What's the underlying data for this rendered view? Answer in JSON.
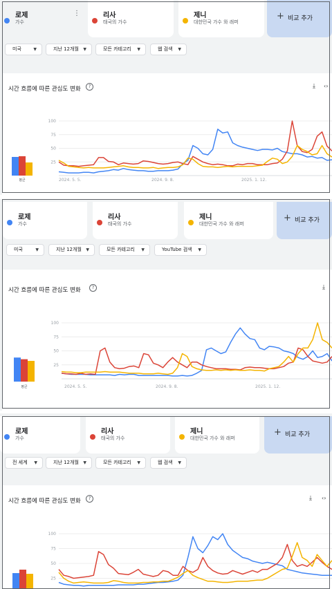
{
  "colors": {
    "rose": "#4285f4",
    "lisa": "#db4437",
    "jennie": "#f4b400",
    "compare": "#c9d9f2"
  },
  "panels": [
    {
      "terms": [
        {
          "name": "로제",
          "sub": "가수",
          "color": "#4285f4"
        },
        {
          "name": "리사",
          "sub": "태국의 가수",
          "color": "#db4437"
        },
        {
          "name": "제니",
          "sub": "대한민국 가수 와 래퍼",
          "color": "#f4b400"
        }
      ],
      "compare_label": "비교 추가",
      "filters": [
        "미국",
        "지난 12개월",
        "모든 카테고리",
        "웹 검색"
      ],
      "chart_title": "시간 흐름에 따른 관심도 변화",
      "avg_label": "평균"
    },
    {
      "terms": [
        {
          "name": "로제",
          "sub": "가수",
          "color": "#4285f4"
        },
        {
          "name": "리사",
          "sub": "태국의 가수",
          "color": "#db4437"
        },
        {
          "name": "제니",
          "sub": "대한민국 가수 와 래퍼",
          "color": "#f4b400"
        }
      ],
      "compare_label": "비교 추가",
      "filters": [
        "미국",
        "지난 12개월",
        "모든 카테고리",
        "YouTube 검색"
      ],
      "chart_title": "시간 흐름에 따른 관심도 변화",
      "avg_label": "평균"
    },
    {
      "terms": [
        {
          "name": "로제",
          "sub": "가수",
          "color": "#4285f4"
        },
        {
          "name": "리사",
          "sub": "태국의 가수",
          "color": "#db4437"
        },
        {
          "name": "제니",
          "sub": "대한민국 가수 와 래퍼",
          "color": "#f4b400"
        }
      ],
      "compare_label": "비교 추가",
      "filters": [
        "전 세계",
        "지난 12개월",
        "모든 카테고리",
        "웹 검색"
      ],
      "chart_title": "시간 흐름에 따른 관심도 변화",
      "avg_label": ""
    }
  ],
  "chart_data": [
    {
      "type": "line",
      "title": "시간 흐름에 따른 관심도 변화",
      "yticks": [
        25,
        50,
        75,
        100
      ],
      "ylim": [
        0,
        100
      ],
      "xticks": [
        "2024. 5. 5.",
        "2024. 9. 8.",
        "2025. 1. 12."
      ],
      "averages": [
        {
          "name": "로제",
          "value": 27
        },
        {
          "name": "리사",
          "value": 28
        },
        {
          "name": "제니",
          "value": 19
        }
      ],
      "series": [
        {
          "name": "로제",
          "color": "#4285f4",
          "values": [
            7,
            6,
            5,
            5,
            5,
            6,
            6,
            5,
            7,
            8,
            9,
            11,
            10,
            13,
            11,
            10,
            9,
            9,
            8,
            8,
            9,
            9,
            9,
            10,
            12,
            22,
            28,
            55,
            50,
            40,
            38,
            48,
            85,
            78,
            80,
            60,
            55,
            52,
            50,
            48,
            46,
            48,
            48,
            47,
            50,
            44,
            42,
            40,
            40,
            38,
            34,
            35,
            32,
            33,
            28,
            29
          ]
        },
        {
          "name": "리사",
          "color": "#db4437",
          "values": [
            25,
            19,
            18,
            18,
            17,
            18,
            19,
            20,
            33,
            33,
            26,
            25,
            20,
            23,
            22,
            21,
            22,
            27,
            26,
            24,
            22,
            21,
            22,
            24,
            25,
            22,
            20,
            35,
            30,
            25,
            22,
            20,
            21,
            20,
            18,
            18,
            21,
            20,
            22,
            22,
            20,
            20,
            20,
            22,
            23,
            30,
            45,
            100,
            55,
            44,
            42,
            48,
            72,
            80,
            54,
            45
          ]
        },
        {
          "name": "제니",
          "color": "#f4b400",
          "values": [
            28,
            23,
            17,
            16,
            15,
            14,
            15,
            14,
            14,
            14,
            15,
            16,
            17,
            18,
            16,
            15,
            15,
            14,
            14,
            15,
            13,
            14,
            15,
            15,
            16,
            20,
            32,
            30,
            22,
            17,
            16,
            16,
            15,
            16,
            17,
            16,
            17,
            17,
            17,
            17,
            18,
            19,
            26,
            32,
            30,
            22,
            25,
            35,
            55,
            48,
            44,
            38,
            40,
            55,
            40,
            34
          ]
        }
      ]
    },
    {
      "type": "line",
      "title": "시간 흐름에 따른 관심도 변화",
      "yticks": [
        25,
        50,
        75,
        100
      ],
      "ylim": [
        0,
        100
      ],
      "xticks": [
        "2024. 5. 5.",
        "2024. 9. 8.",
        "2025. 1. 12."
      ],
      "averages": [
        {
          "name": "로제",
          "value": 29
        },
        {
          "name": "리사",
          "value": 27
        },
        {
          "name": "제니",
          "value": 25
        }
      ],
      "series": [
        {
          "name": "로제",
          "color": "#4285f4",
          "values": [
            10,
            9,
            8,
            8,
            8,
            8,
            7,
            7,
            7,
            7,
            7,
            6,
            8,
            7,
            8,
            8,
            6,
            6,
            6,
            6,
            6,
            6,
            6,
            5,
            5,
            6,
            5,
            6,
            10,
            15,
            52,
            55,
            50,
            45,
            48,
            65,
            80,
            91,
            80,
            72,
            70,
            55,
            52,
            58,
            57,
            55,
            50,
            48,
            45,
            38,
            35,
            40,
            50,
            38,
            40,
            45,
            32
          ]
        },
        {
          "name": "리사",
          "color": "#db4437",
          "values": [
            10,
            9,
            9,
            8,
            10,
            8,
            9,
            8,
            50,
            55,
            30,
            20,
            18,
            19,
            22,
            23,
            20,
            45,
            43,
            28,
            25,
            20,
            30,
            38,
            30,
            25,
            20,
            30,
            30,
            25,
            22,
            20,
            18,
            18,
            18,
            17,
            17,
            16,
            20,
            21,
            20,
            20,
            19,
            18,
            18,
            20,
            22,
            28,
            30,
            55,
            52,
            40,
            32,
            30,
            28,
            30,
            40
          ]
        },
        {
          "name": "제니",
          "color": "#f4b400",
          "values": [
            13,
            12,
            12,
            11,
            11,
            12,
            12,
            12,
            12,
            13,
            12,
            12,
            12,
            11,
            10,
            10,
            10,
            9,
            9,
            9,
            10,
            9,
            8,
            10,
            20,
            45,
            40,
            22,
            18,
            16,
            15,
            15,
            16,
            15,
            16,
            15,
            16,
            15,
            15,
            16,
            15,
            15,
            14,
            18,
            20,
            22,
            30,
            40,
            30,
            45,
            55,
            55,
            70,
            100,
            70,
            65,
            55
          ]
        }
      ]
    },
    {
      "type": "line",
      "title": "시간 흐름에 따른 관심도 변화",
      "yticks": [
        25,
        50,
        75,
        100
      ],
      "ylim": [
        0,
        100
      ],
      "xticks": [],
      "averages": [
        {
          "name": "로제",
          "value": 23
        },
        {
          "name": "리사",
          "value": 28
        },
        {
          "name": "제니",
          "value": 22
        }
      ],
      "series": [
        {
          "name": "로제",
          "color": "#4285f4",
          "values": [
            18,
            15,
            14,
            13,
            13,
            12,
            13,
            13,
            13,
            13,
            13,
            13,
            14,
            14,
            14,
            14,
            15,
            15,
            16,
            17,
            18,
            18,
            19,
            20,
            22,
            30,
            60,
            95,
            75,
            68,
            80,
            95,
            90,
            100,
            82,
            72,
            66,
            60,
            58,
            54,
            52,
            50,
            52,
            50,
            48,
            46,
            40,
            38,
            36,
            34,
            33,
            32,
            31,
            30,
            30,
            30
          ]
        },
        {
          "name": "리사",
          "color": "#db4437",
          "values": [
            40,
            30,
            28,
            25,
            26,
            27,
            28,
            30,
            70,
            65,
            48,
            42,
            33,
            32,
            31,
            35,
            40,
            32,
            30,
            28,
            30,
            38,
            36,
            30,
            30,
            45,
            38,
            35,
            40,
            60,
            45,
            38,
            34,
            32,
            33,
            38,
            35,
            32,
            35,
            38,
            35,
            40,
            40,
            45,
            50,
            60,
            82,
            55,
            45,
            48,
            45,
            52,
            60,
            52,
            45,
            40
          ]
        },
        {
          "name": "제니",
          "color": "#f4b400",
          "values": [
            35,
            25,
            20,
            17,
            18,
            19,
            18,
            17,
            17,
            17,
            18,
            21,
            20,
            18,
            17,
            17,
            17,
            18,
            18,
            19,
            19,
            20,
            20,
            23,
            27,
            33,
            38,
            30,
            26,
            23,
            20,
            20,
            19,
            18,
            18,
            19,
            20,
            20,
            20,
            21,
            22,
            22,
            25,
            30,
            35,
            40,
            42,
            62,
            85,
            60,
            55,
            45,
            65,
            55,
            45,
            55
          ]
        }
      ]
    }
  ]
}
